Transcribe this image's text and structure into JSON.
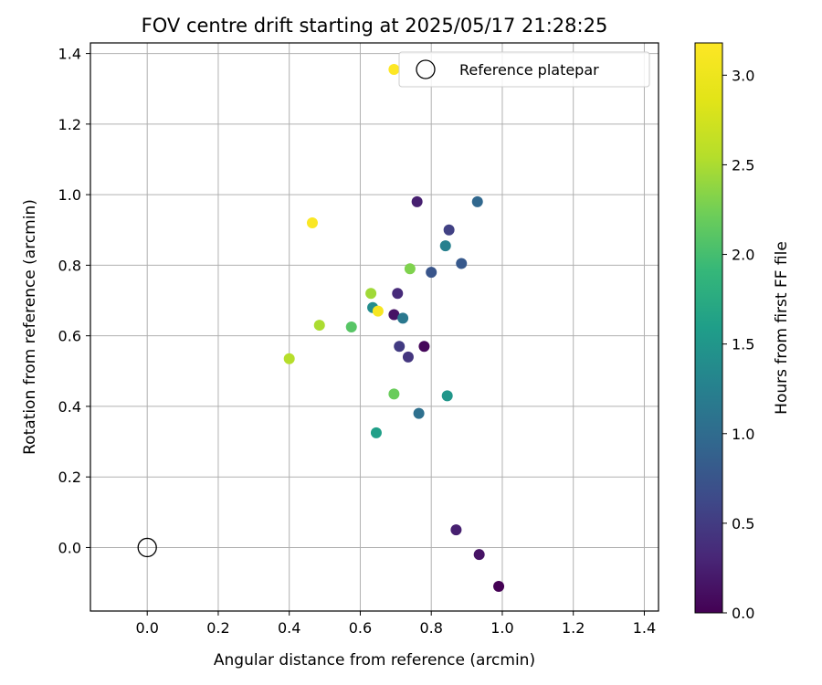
{
  "chart_data": {
    "type": "scatter",
    "title": "FOV centre drift starting at 2025/05/17 21:28:25",
    "xlabel": "Angular distance from reference (arcmin)",
    "ylabel": "Rotation from reference (arcmin)",
    "xlim": [
      -0.16,
      1.44
    ],
    "ylim": [
      -0.18,
      1.43
    ],
    "xticks": [
      0.0,
      0.2,
      0.4,
      0.6,
      0.8,
      1.0,
      1.2,
      1.4
    ],
    "xtick_labels": [
      "0.0",
      "0.2",
      "0.4",
      "0.6",
      "0.8",
      "1.0",
      "1.2",
      "1.4"
    ],
    "yticks": [
      0.0,
      0.2,
      0.4,
      0.6,
      0.8,
      1.0,
      1.2,
      1.4
    ],
    "ytick_labels": [
      "0.0",
      "0.2",
      "0.4",
      "0.6",
      "0.8",
      "1.0",
      "1.2",
      "1.4"
    ],
    "grid": true,
    "colormap": "viridis",
    "colorbar": {
      "label": "Hours from first FF file",
      "range": [
        0.0,
        3.18
      ],
      "ticks": [
        0.0,
        0.5,
        1.0,
        1.5,
        2.0,
        2.5,
        3.0
      ],
      "tick_labels": [
        "0.0",
        "0.5",
        "1.0",
        "1.5",
        "2.0",
        "2.5",
        "3.0"
      ]
    },
    "reference": {
      "label": "Reference platepar",
      "x": 0.0,
      "y": 0.0
    },
    "legend": {
      "position": "upper-right",
      "entries": [
        "Reference platepar"
      ]
    },
    "points": [
      {
        "x": 0.99,
        "y": -0.11,
        "hours": 0.0
      },
      {
        "x": 0.78,
        "y": 0.57,
        "hours": 0.05
      },
      {
        "x": 0.935,
        "y": -0.02,
        "hours": 0.15
      },
      {
        "x": 0.695,
        "y": 0.66,
        "hours": 0.15
      },
      {
        "x": 0.87,
        "y": 0.05,
        "hours": 0.25
      },
      {
        "x": 0.76,
        "y": 0.98,
        "hours": 0.25
      },
      {
        "x": 0.705,
        "y": 0.72,
        "hours": 0.35
      },
      {
        "x": 0.735,
        "y": 0.54,
        "hours": 0.45
      },
      {
        "x": 0.71,
        "y": 0.57,
        "hours": 0.5
      },
      {
        "x": 0.85,
        "y": 0.9,
        "hours": 0.55
      },
      {
        "x": 0.8,
        "y": 0.78,
        "hours": 0.75
      },
      {
        "x": 0.885,
        "y": 0.805,
        "hours": 0.8
      },
      {
        "x": 0.93,
        "y": 0.98,
        "hours": 0.95
      },
      {
        "x": 0.765,
        "y": 0.38,
        "hours": 1.05
      },
      {
        "x": 0.72,
        "y": 0.65,
        "hours": 1.15
      },
      {
        "x": 0.84,
        "y": 0.855,
        "hours": 1.25
      },
      {
        "x": 0.635,
        "y": 0.68,
        "hours": 1.4
      },
      {
        "x": 0.845,
        "y": 0.43,
        "hours": 1.5
      },
      {
        "x": 0.645,
        "y": 0.325,
        "hours": 1.6
      },
      {
        "x": 0.575,
        "y": 0.625,
        "hours": 2.1
      },
      {
        "x": 0.695,
        "y": 0.435,
        "hours": 2.2
      },
      {
        "x": 0.74,
        "y": 0.79,
        "hours": 2.3
      },
      {
        "x": 0.63,
        "y": 0.72,
        "hours": 2.45
      },
      {
        "x": 0.485,
        "y": 0.63,
        "hours": 2.5
      },
      {
        "x": 0.4,
        "y": 0.535,
        "hours": 2.55
      },
      {
        "x": 0.65,
        "y": 0.67,
        "hours": 3.1
      },
      {
        "x": 0.465,
        "y": 0.92,
        "hours": 3.15
      },
      {
        "x": 0.695,
        "y": 1.355,
        "hours": 3.18
      }
    ]
  }
}
